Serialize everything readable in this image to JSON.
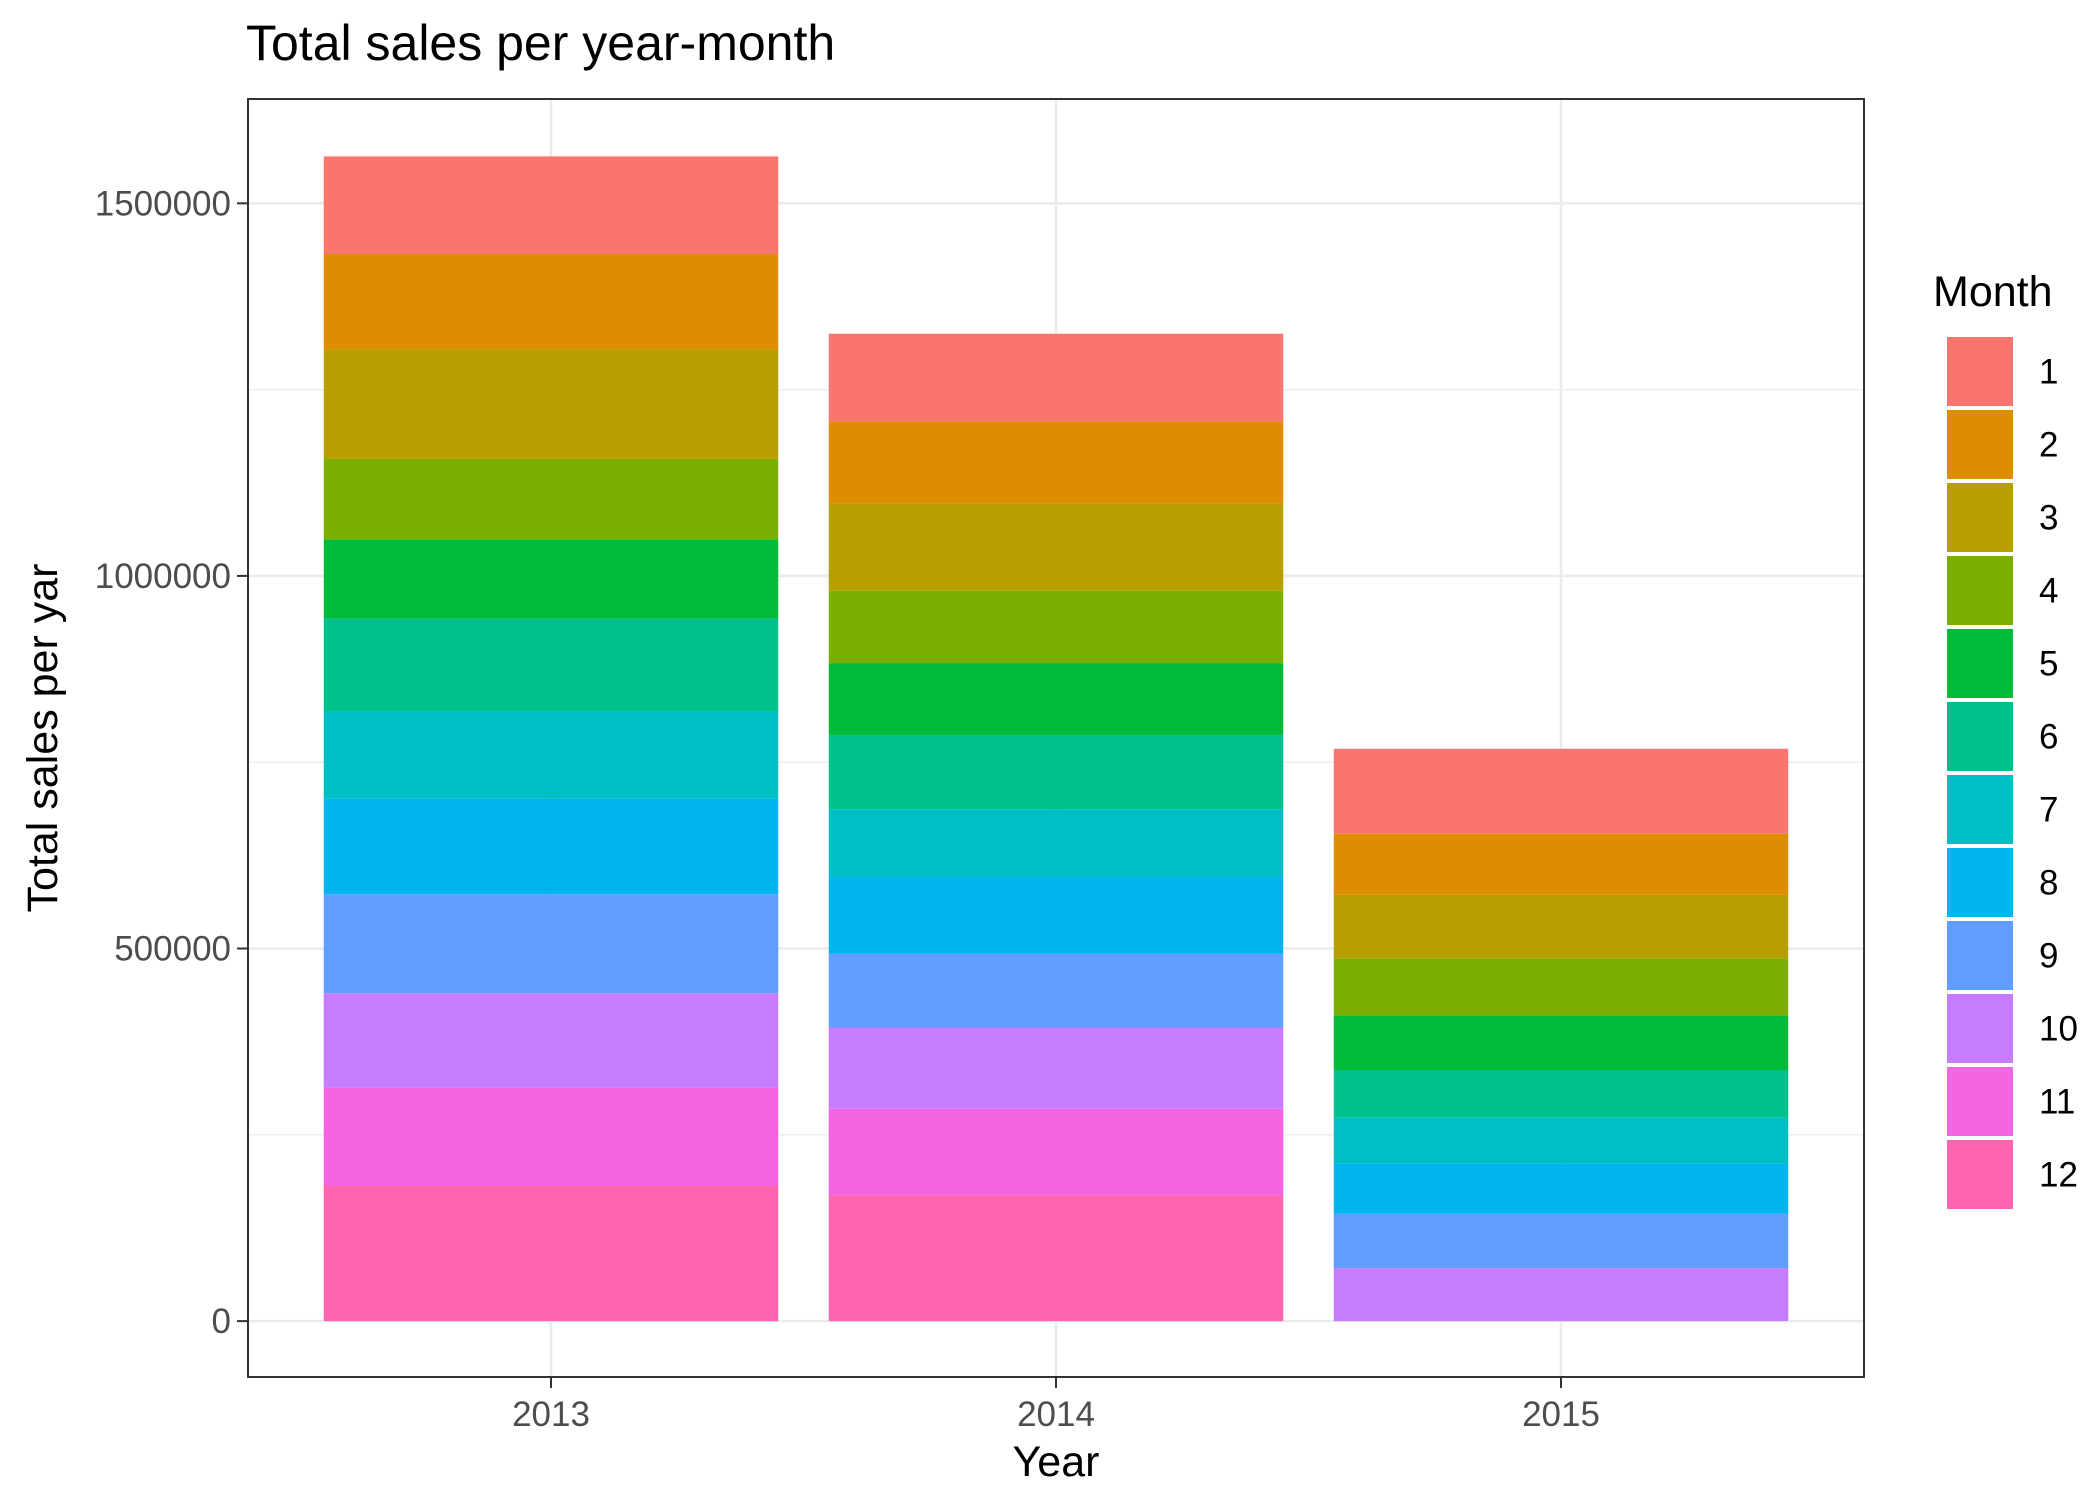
{
  "chart_data": {
    "type": "bar",
    "stacked": true,
    "title": "Total sales per year-month",
    "xlabel": "Year",
    "ylabel": "Total sales per yar",
    "categories": [
      "2013",
      "2014",
      "2015"
    ],
    "ylim": [
      -75000,
      1640000
    ],
    "yticks": [
      0,
      500000,
      1000000,
      1500000
    ],
    "ytick_labels": [
      "0",
      "500000",
      "1000000",
      "1500000"
    ],
    "grid": true,
    "legend": {
      "title": "Month",
      "position": "right"
    },
    "series": [
      {
        "name": "1",
        "color": "#F8766D",
        "values": [
          131000,
          118000,
          114000
        ]
      },
      {
        "name": "2",
        "color": "#DE8C00",
        "values": [
          128000,
          110000,
          82000
        ]
      },
      {
        "name": "3",
        "color": "#B79F00",
        "values": [
          147000,
          117000,
          85000
        ]
      },
      {
        "name": "4",
        "color": "#7CAE00",
        "values": [
          108000,
          97000,
          77000
        ]
      },
      {
        "name": "5",
        "color": "#00BA38",
        "values": [
          106000,
          97000,
          73000
        ]
      },
      {
        "name": "6",
        "color": "#00C08B",
        "values": [
          125000,
          99000,
          64000
        ]
      },
      {
        "name": "7",
        "color": "#00BFC4",
        "values": [
          117000,
          91000,
          62000
        ]
      },
      {
        "name": "8",
        "color": "#00B4F0",
        "values": [
          128000,
          103000,
          67000
        ]
      },
      {
        "name": "9",
        "color": "#619CFF",
        "values": [
          133000,
          99000,
          73000
        ]
      },
      {
        "name": "10",
        "color": "#C77CFF",
        "values": [
          127000,
          109000,
          71000
        ]
      },
      {
        "name": "11",
        "color": "#F564E3",
        "values": [
          131000,
          116000,
          0
        ]
      },
      {
        "name": "12",
        "color": "#FF64B0",
        "values": [
          182000,
          169000,
          0
        ]
      }
    ]
  }
}
